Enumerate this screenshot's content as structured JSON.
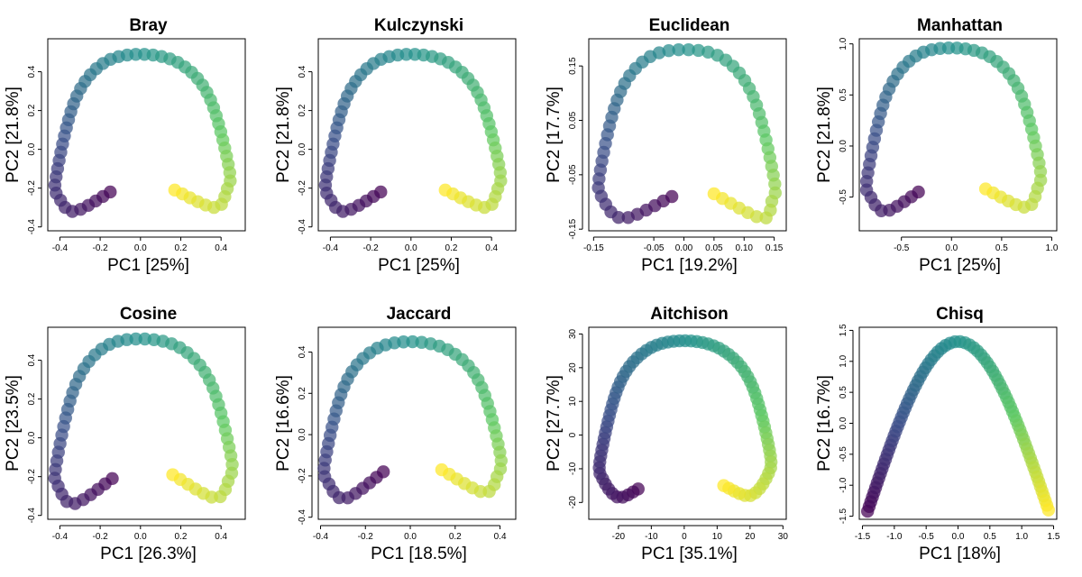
{
  "chart_data": [
    {
      "type": "scatter",
      "title": "Bray",
      "xlabel": "PC1 [25%]",
      "ylabel": "PC2 [21.8%]",
      "xlim": [
        -0.46,
        0.52
      ],
      "ylim": [
        -0.42,
        0.57
      ],
      "xticks": [
        -0.4,
        -0.2,
        0.0,
        0.2,
        0.4
      ],
      "yticks": [
        -0.4,
        -0.2,
        0.0,
        0.2,
        0.4
      ],
      "xtick_labels": [
        "-0.4",
        "-0.2",
        "0.0",
        "0.2",
        "0.4"
      ],
      "ytick_labels": [
        "-0.4",
        "-0.2",
        "0.0",
        "0.2",
        "0.4"
      ],
      "curve": {
        "shape": "horseshoe",
        "start": [
          -0.15,
          -0.22
        ],
        "min": [
          -0.33,
          -0.32
        ],
        "left": [
          -0.42,
          -0.15
        ],
        "apex": [
          0.0,
          0.49
        ],
        "right": [
          0.44,
          -0.1
        ],
        "min2": [
          0.37,
          -0.3
        ],
        "end": [
          0.17,
          -0.21
        ]
      },
      "point_count": 60,
      "color_scale": [
        "#440154",
        "#3b528b",
        "#21908c",
        "#5dc863",
        "#fde725"
      ]
    },
    {
      "type": "scatter",
      "title": "Kulczynski",
      "xlabel": "PC1 [25%]",
      "ylabel": "PC2 [21.8%]",
      "xlim": [
        -0.46,
        0.52
      ],
      "ylim": [
        -0.42,
        0.57
      ],
      "xticks": [
        -0.4,
        -0.2,
        0.0,
        0.2,
        0.4
      ],
      "yticks": [
        -0.4,
        -0.2,
        0.0,
        0.2,
        0.4
      ],
      "xtick_labels": [
        "-0.4",
        "-0.2",
        "0.0",
        "0.2",
        "0.4"
      ],
      "ytick_labels": [
        "-0.4",
        "-0.2",
        "0.0",
        "0.2",
        "0.4"
      ],
      "curve": {
        "shape": "horseshoe",
        "start": [
          -0.15,
          -0.22
        ],
        "min": [
          -0.33,
          -0.32
        ],
        "left": [
          -0.42,
          -0.15
        ],
        "apex": [
          0.0,
          0.49
        ],
        "right": [
          0.44,
          -0.1
        ],
        "min2": [
          0.37,
          -0.3
        ],
        "end": [
          0.17,
          -0.21
        ]
      },
      "point_count": 60,
      "color_scale": [
        "#440154",
        "#3b528b",
        "#21908c",
        "#5dc863",
        "#fde725"
      ]
    },
    {
      "type": "scatter",
      "title": "Euclidean",
      "xlabel": "PC1 [19.2%]",
      "ylabel": "PC2 [17.7%]",
      "xlim": [
        -0.158,
        0.17
      ],
      "ylim": [
        -0.153,
        0.2
      ],
      "xticks": [
        -0.15,
        -0.05,
        0.0,
        0.05,
        0.1,
        0.15
      ],
      "yticks": [
        -0.15,
        -0.05,
        0.05,
        0.15
      ],
      "xtick_labels": [
        "-0.15",
        "-0.05",
        "0.00",
        "0.05",
        "0.10",
        "0.15"
      ],
      "ytick_labels": [
        "-0.15",
        "-0.05",
        "0.05",
        "0.15"
      ],
      "curve": {
        "shape": "horseshoe",
        "start": [
          -0.02,
          -0.09
        ],
        "min": [
          -0.1,
          -0.13
        ],
        "left": [
          -0.14,
          -0.05
        ],
        "apex": [
          0.0,
          0.18
        ],
        "right": [
          0.15,
          -0.06
        ],
        "min2": [
          0.13,
          -0.13
        ],
        "end": [
          0.05,
          -0.085
        ]
      },
      "point_count": 60,
      "color_scale": [
        "#440154",
        "#3b528b",
        "#21908c",
        "#5dc863",
        "#fde725"
      ]
    },
    {
      "type": "scatter",
      "title": "Manhattan",
      "xlabel": "PC1 [25%]",
      "ylabel": "PC2 [21.8%]",
      "xlim": [
        -0.92,
        1.05
      ],
      "ylim": [
        -0.83,
        1.05
      ],
      "xticks": [
        -0.5,
        0.0,
        0.5,
        1.0
      ],
      "yticks": [
        -0.5,
        0.0,
        0.5,
        1.0
      ],
      "xtick_labels": [
        "-0.5",
        "0.0",
        "0.5",
        "1.0"
      ],
      "ytick_labels": [
        "-0.5",
        "0.0",
        "0.5",
        "1.0"
      ],
      "curve": {
        "shape": "horseshoe",
        "start": [
          -0.33,
          -0.45
        ],
        "min": [
          -0.66,
          -0.64
        ],
        "left": [
          -0.84,
          -0.3
        ],
        "apex": [
          0.0,
          0.96
        ],
        "right": [
          0.88,
          -0.2
        ],
        "min2": [
          0.74,
          -0.6
        ],
        "end": [
          0.34,
          -0.42
        ]
      },
      "point_count": 60,
      "color_scale": [
        "#440154",
        "#3b528b",
        "#21908c",
        "#5dc863",
        "#fde725"
      ]
    },
    {
      "type": "scatter",
      "title": "Cosine",
      "xlabel": "PC1 [26.3%]",
      "ylabel": "PC2 [23.5%]",
      "xlim": [
        -0.46,
        0.52
      ],
      "ylim": [
        -0.42,
        0.57
      ],
      "xticks": [
        -0.4,
        -0.2,
        0.0,
        0.2,
        0.4
      ],
      "yticks": [
        -0.4,
        -0.2,
        0.0,
        0.2,
        0.4
      ],
      "xtick_labels": [
        "-0.4",
        "-0.2",
        "0.0",
        "0.2",
        "0.4"
      ],
      "ytick_labels": [
        "-0.4",
        "-0.2",
        "0.0",
        "0.2",
        "0.4"
      ],
      "curve": {
        "shape": "horseshoe",
        "start": [
          -0.14,
          -0.21
        ],
        "min": [
          -0.33,
          -0.34
        ],
        "left": [
          -0.42,
          -0.15
        ],
        "apex": [
          0.0,
          0.51
        ],
        "right": [
          0.45,
          -0.1
        ],
        "min2": [
          0.37,
          -0.31
        ],
        "end": [
          0.16,
          -0.19
        ]
      },
      "point_count": 60,
      "color_scale": [
        "#440154",
        "#3b528b",
        "#21908c",
        "#5dc863",
        "#fde725"
      ]
    },
    {
      "type": "scatter",
      "title": "Jaccard",
      "xlabel": "PC1 [18.5%]",
      "ylabel": "PC2 [16.6%]",
      "xlim": [
        -0.41,
        0.47
      ],
      "ylim": [
        -0.41,
        0.52
      ],
      "xticks": [
        -0.4,
        -0.2,
        0.0,
        0.2,
        0.4
      ],
      "yticks": [
        -0.4,
        -0.2,
        0.0,
        0.2,
        0.4
      ],
      "xtick_labels": [
        "-0.4",
        "-0.2",
        "0.0",
        "0.2",
        "0.4"
      ],
      "ytick_labels": [
        "-0.4",
        "-0.2",
        "0.0",
        "0.2",
        "0.4"
      ],
      "curve": {
        "shape": "horseshoe",
        "start": [
          -0.12,
          -0.18
        ],
        "min": [
          -0.29,
          -0.31
        ],
        "left": [
          -0.38,
          -0.13
        ],
        "apex": [
          0.0,
          0.45
        ],
        "right": [
          0.4,
          -0.09
        ],
        "min2": [
          0.33,
          -0.28
        ],
        "end": [
          0.14,
          -0.17
        ]
      },
      "point_count": 60,
      "color_scale": [
        "#440154",
        "#3b528b",
        "#21908c",
        "#5dc863",
        "#fde725"
      ]
    },
    {
      "type": "scatter",
      "title": "Aitchison",
      "xlabel": "PC1 [35.1%]",
      "ylabel": "PC2 [27.7%]",
      "xlim": [
        -29,
        31
      ],
      "ylim": [
        -25,
        32
      ],
      "xticks": [
        -20,
        -10,
        0,
        10,
        20,
        30
      ],
      "yticks": [
        -20,
        -10,
        0,
        10,
        20,
        30
      ],
      "xtick_labels": [
        "-20",
        "-10",
        "0",
        "10",
        "20",
        "30"
      ],
      "ytick_labels": [
        "-20",
        "-10",
        "0",
        "10",
        "20",
        "30"
      ],
      "curve": {
        "shape": "horseshoe",
        "start": [
          -14,
          -16
        ],
        "min": [
          -20,
          -18.5
        ],
        "left": [
          -25.5,
          -7
        ],
        "apex": [
          0,
          28
        ],
        "right": [
          26,
          -5
        ],
        "min2": [
          20,
          -18
        ],
        "end": [
          12,
          -15
        ]
      },
      "point_count": 80,
      "color_scale": [
        "#440154",
        "#3b528b",
        "#21908c",
        "#5dc863",
        "#fde725"
      ]
    },
    {
      "type": "scatter",
      "title": "Chisq",
      "xlabel": "PC1 [18%]",
      "ylabel": "PC2 [16.7%]",
      "xlim": [
        -1.55,
        1.55
      ],
      "ylim": [
        -1.55,
        1.55
      ],
      "xticks": [
        -1.5,
        -1.0,
        -0.5,
        0.0,
        0.5,
        1.0,
        1.5
      ],
      "yticks": [
        -1.5,
        -1.0,
        -0.5,
        0.0,
        0.5,
        1.0,
        1.5
      ],
      "xtick_labels": [
        "-1.5",
        "-1.0",
        "-0.5",
        "0.0",
        "0.5",
        "1.0",
        "1.5"
      ],
      "ytick_labels": [
        "-1.5",
        "-1.0",
        "-0.5",
        "0.0",
        "0.5",
        "1.0",
        "1.5"
      ],
      "curve": {
        "shape": "arch",
        "start": [
          -1.42,
          -1.42
        ],
        "apex": [
          0.0,
          1.32
        ],
        "end": [
          1.42,
          -1.4
        ]
      },
      "point_count": 80,
      "color_scale": [
        "#440154",
        "#3b528b",
        "#21908c",
        "#5dc863",
        "#fde725"
      ]
    }
  ]
}
